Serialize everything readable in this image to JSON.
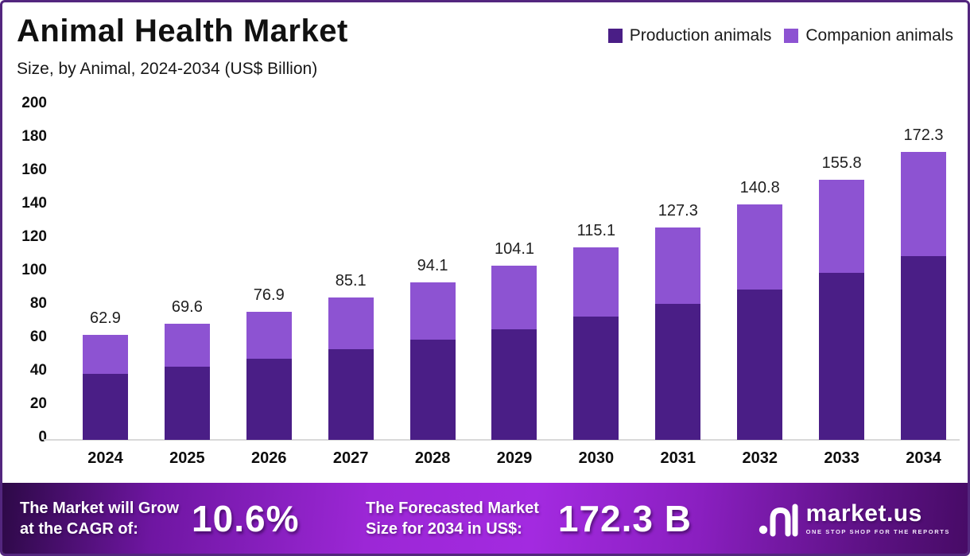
{
  "header": {
    "title": "Animal Health Market",
    "subtitle": "Size, by Animal, 2024-2034 (US$ Billion)"
  },
  "chart_data": {
    "type": "bar",
    "stacked": true,
    "title": "Animal Health Market",
    "subtitle": "Size, by Animal, 2024-2034 (US$ Billion)",
    "categories": [
      "2024",
      "2025",
      "2026",
      "2027",
      "2028",
      "2029",
      "2030",
      "2031",
      "2032",
      "2033",
      "2034"
    ],
    "series": [
      {
        "name": "Production animals",
        "color": "#4a1e86",
        "values": [
          39.5,
          44.0,
          48.8,
          54.2,
          60.0,
          66.3,
          73.7,
          81.2,
          90.0,
          100.0,
          110.0
        ]
      },
      {
        "name": "Companion animals",
        "color": "#8d53d2",
        "values": [
          23.4,
          25.6,
          28.1,
          30.9,
          34.1,
          37.8,
          41.4,
          46.1,
          50.8,
          55.8,
          62.3
        ]
      }
    ],
    "totals": [
      "62.9",
      "69.6",
      "76.9",
      "85.1",
      "94.1",
      "104.1",
      "115.1",
      "127.3",
      "140.8",
      "155.8",
      "172.3"
    ],
    "ylim": [
      0,
      200
    ],
    "yticks": [
      0,
      20,
      40,
      60,
      80,
      100,
      120,
      140,
      160,
      180,
      200
    ],
    "grid": false,
    "legend_position": "top-right",
    "xlabel": "",
    "ylabel": ""
  },
  "banner": {
    "cagr_label_line1": "The Market will Grow",
    "cagr_label_line2": "at the CAGR of:",
    "cagr_value": "10.6%",
    "forecast_label_line1": "The Forecasted Market",
    "forecast_label_line2": "Size for 2034 in US$:",
    "forecast_value": "172.3 B",
    "brand_name": "market.us",
    "brand_tagline": "ONE STOP SHOP FOR THE REPORTS"
  },
  "colors": {
    "production": "#4a1e86",
    "companion": "#8d53d2",
    "frame_border": "#53267e",
    "banner_bright": "#a32ae0",
    "banner_dark": "#2d0947",
    "axis_line": "#d9d9d9"
  }
}
